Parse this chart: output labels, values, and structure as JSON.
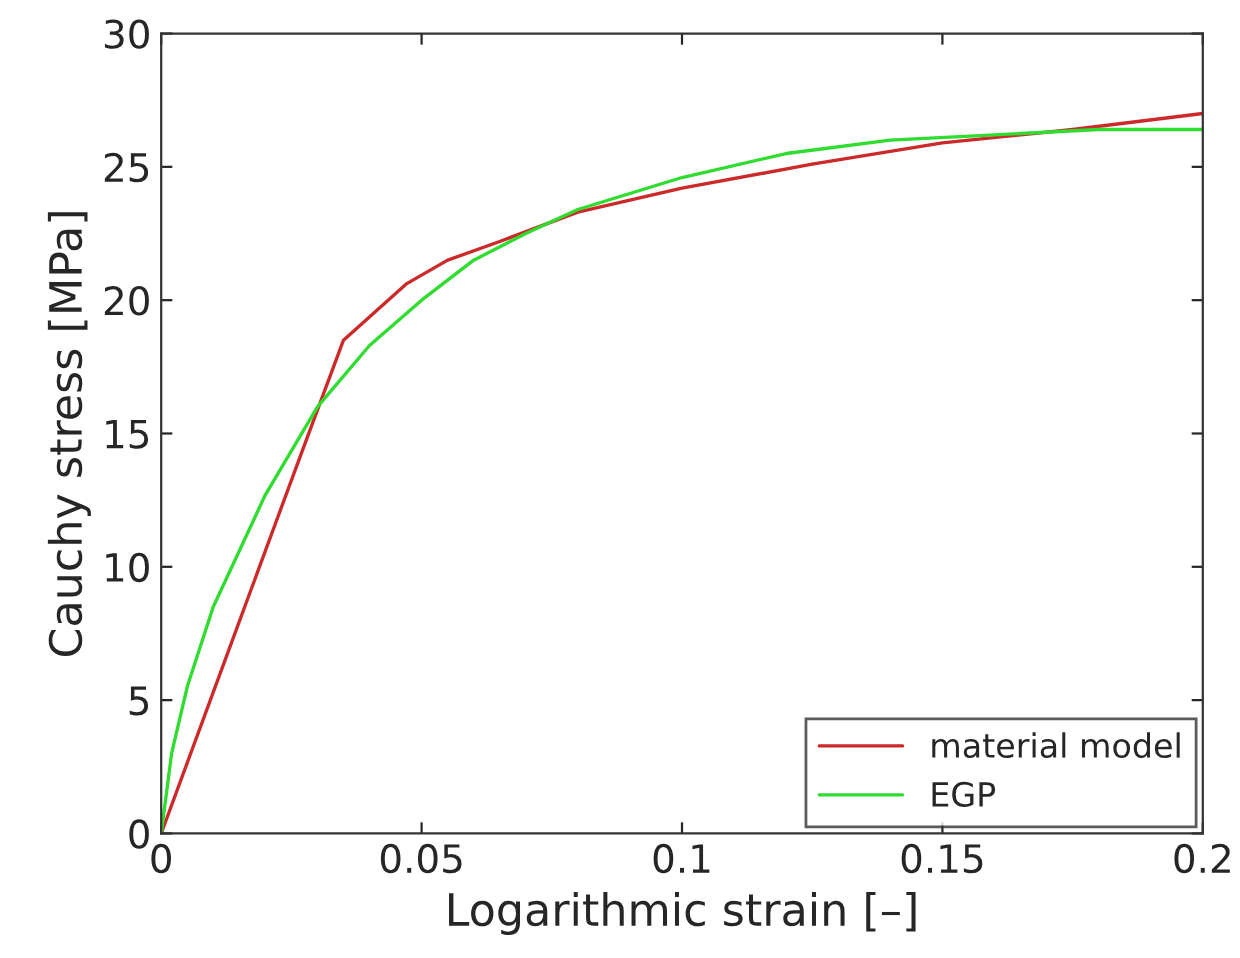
{
  "chart_data": {
    "type": "line",
    "xlabel": "Logarithmic strain [–]",
    "ylabel": "Cauchy stress [MPa]",
    "xlim": [
      0,
      0.2
    ],
    "xticks": [
      0,
      0.05,
      0.1,
      0.15,
      0.2
    ],
    "ylim": [
      0,
      30
    ],
    "yticks": [
      0,
      5,
      10,
      15,
      20,
      25,
      30
    ],
    "grid": false,
    "legend": "bottom right",
    "line_style": "solid",
    "marker": "none",
    "series": [
      {
        "name": "material model",
        "color": "#cc2a2a",
        "x": [
          0,
          0.01,
          0.02,
          0.027,
          0.035,
          0.047,
          0.055,
          0.065,
          0.08,
          0.1,
          0.125,
          0.15,
          0.175,
          0.2
        ],
        "values": [
          0,
          5.3,
          10.6,
          14.3,
          18.5,
          20.6,
          21.5,
          22.2,
          23.3,
          24.2,
          25.1,
          25.9,
          26.4,
          27.0
        ]
      },
      {
        "name": "EGP",
        "color": "#2fdc2f",
        "x": [
          0,
          0.002,
          0.005,
          0.01,
          0.02,
          0.03,
          0.04,
          0.05,
          0.06,
          0.07,
          0.08,
          0.1,
          0.12,
          0.14,
          0.16,
          0.18,
          0.2
        ],
        "values": [
          0,
          3,
          5.5,
          8.5,
          12.7,
          16,
          18.3,
          20,
          21.5,
          22.5,
          23.4,
          24.6,
          25.5,
          26.0,
          26.2,
          26.4,
          26.4
        ]
      }
    ]
  }
}
